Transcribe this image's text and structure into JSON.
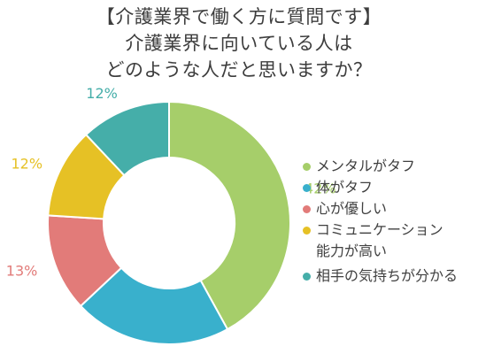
{
  "title": {
    "lines": [
      "【介護業界で働く方に質問です】",
      "介護業界に向いている人は",
      "どのような人だと思いますか？"
    ]
  },
  "chart_data": {
    "type": "pie",
    "donut": true,
    "categories": [
      "メンタルがタフ",
      "体がタフ",
      "心が優しい",
      "コミュニケーション\n能力が高い",
      "相手の気持ちが分かる"
    ],
    "values": [
      42,
      21,
      13,
      12,
      12
    ],
    "value_labels": [
      "42%",
      "21%",
      "13%",
      "12%",
      "12%"
    ],
    "colors": [
      "#a6ce6a",
      "#39b0cc",
      "#e27b79",
      "#e6c125",
      "#45aea9"
    ],
    "legend_position": "right"
  }
}
